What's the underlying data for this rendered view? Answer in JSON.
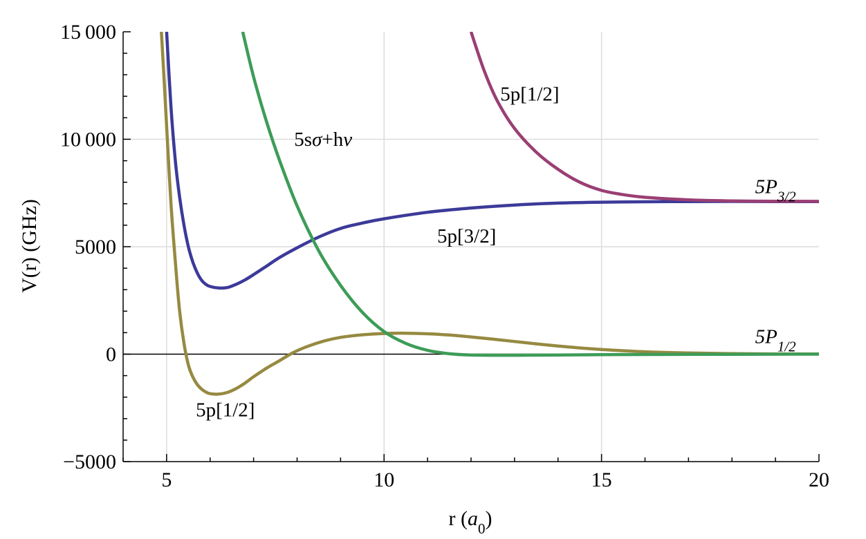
{
  "chart_data": {
    "type": "line",
    "title": "",
    "xlabel": "r (a",
    "xlabel_sub": "0",
    "xlabel_close": ")",
    "ylabel": "V(r) (GHz)",
    "xlim": [
      4,
      20
    ],
    "ylim": [
      -5000,
      15000
    ],
    "x_ticks": [
      {
        "value": 5,
        "label": "5"
      },
      {
        "value": 10,
        "label": "10"
      },
      {
        "value": 15,
        "label": "15"
      },
      {
        "value": 20,
        "label": "20"
      }
    ],
    "y_ticks": [
      {
        "value": -5000,
        "label": "−5000"
      },
      {
        "value": 0,
        "label": "0"
      },
      {
        "value": 5000,
        "label": "5000"
      },
      {
        "value": 10000,
        "label": "10 000"
      },
      {
        "value": 15000,
        "label": "15 000"
      }
    ],
    "grid": true,
    "zero_line": true,
    "series": [
      {
        "id": "yellow",
        "color": "#968a41",
        "points": [
          [
            4.88,
            15000
          ],
          [
            4.95,
            12500
          ],
          [
            5.0,
            10600
          ],
          [
            5.1,
            7000
          ],
          [
            5.2,
            4300
          ],
          [
            5.3,
            2000
          ],
          [
            5.4,
            500
          ],
          [
            5.5,
            -500
          ],
          [
            5.6,
            -1050
          ],
          [
            5.7,
            -1400
          ],
          [
            5.8,
            -1620
          ],
          [
            5.9,
            -1760
          ],
          [
            6.0,
            -1840
          ],
          [
            6.2,
            -1860
          ],
          [
            6.4,
            -1780
          ],
          [
            6.6,
            -1600
          ],
          [
            6.8,
            -1350
          ],
          [
            7.0,
            -1050
          ],
          [
            7.3,
            -650
          ],
          [
            7.6,
            -300
          ],
          [
            7.9,
            60
          ],
          [
            8.2,
            330
          ],
          [
            8.6,
            600
          ],
          [
            9.0,
            780
          ],
          [
            9.5,
            900
          ],
          [
            10.0,
            960
          ],
          [
            10.5,
            975
          ],
          [
            11.0,
            950
          ],
          [
            11.5,
            890
          ],
          [
            12.0,
            800
          ],
          [
            12.5,
            700
          ],
          [
            13.0,
            590
          ],
          [
            13.5,
            480
          ],
          [
            14.0,
            380
          ],
          [
            14.5,
            290
          ],
          [
            15.0,
            215
          ],
          [
            16.0,
            110
          ],
          [
            17.0,
            55
          ],
          [
            18.0,
            25
          ],
          [
            19.0,
            10
          ],
          [
            20.0,
            5
          ]
        ]
      },
      {
        "id": "blue",
        "color": "#3c3a99",
        "points": [
          [
            5.0,
            15000
          ],
          [
            5.1,
            11500
          ],
          [
            5.2,
            9000
          ],
          [
            5.3,
            7300
          ],
          [
            5.4,
            6000
          ],
          [
            5.5,
            5000
          ],
          [
            5.6,
            4300
          ],
          [
            5.7,
            3800
          ],
          [
            5.8,
            3450
          ],
          [
            5.9,
            3250
          ],
          [
            6.0,
            3150
          ],
          [
            6.2,
            3080
          ],
          [
            6.4,
            3100
          ],
          [
            6.6,
            3250
          ],
          [
            6.8,
            3450
          ],
          [
            7.0,
            3700
          ],
          [
            7.3,
            4100
          ],
          [
            7.6,
            4500
          ],
          [
            8.0,
            4950
          ],
          [
            8.5,
            5450
          ],
          [
            9.0,
            5850
          ],
          [
            9.5,
            6100
          ],
          [
            10.0,
            6300
          ],
          [
            11.0,
            6600
          ],
          [
            12.0,
            6800
          ],
          [
            13.0,
            6940
          ],
          [
            14.0,
            7030
          ],
          [
            15.0,
            7070
          ],
          [
            16.0,
            7090
          ],
          [
            17.0,
            7100
          ],
          [
            18.0,
            7105
          ],
          [
            19.0,
            7100
          ],
          [
            20.0,
            7100
          ]
        ]
      },
      {
        "id": "green",
        "color": "#3d9c57",
        "points": [
          [
            6.75,
            15000
          ],
          [
            7.0,
            12900
          ],
          [
            7.3,
            10800
          ],
          [
            7.6,
            9000
          ],
          [
            8.0,
            6900
          ],
          [
            8.5,
            4800
          ],
          [
            9.0,
            3200
          ],
          [
            9.5,
            1950
          ],
          [
            10.0,
            1050
          ],
          [
            10.5,
            500
          ],
          [
            11.0,
            180
          ],
          [
            11.5,
            20
          ],
          [
            12.0,
            -40
          ],
          [
            13.0,
            -50
          ],
          [
            14.0,
            -40
          ],
          [
            15.0,
            -25
          ],
          [
            16.0,
            -15
          ],
          [
            18.0,
            -5
          ],
          [
            20.0,
            0
          ]
        ]
      },
      {
        "id": "purple",
        "color": "#9a3f74",
        "points": [
          [
            12.0,
            15000
          ],
          [
            12.3,
            13200
          ],
          [
            12.6,
            11800
          ],
          [
            13.0,
            10500
          ],
          [
            13.5,
            9400
          ],
          [
            14.0,
            8600
          ],
          [
            14.5,
            8000
          ],
          [
            15.0,
            7620
          ],
          [
            15.5,
            7420
          ],
          [
            16.0,
            7300
          ],
          [
            17.0,
            7180
          ],
          [
            18.0,
            7130
          ],
          [
            19.0,
            7115
          ],
          [
            20.0,
            7110
          ]
        ]
      }
    ],
    "annotations": [
      {
        "id": "purple-label",
        "text": "5p[1/2]",
        "x": 13.35,
        "y": 11800
      },
      {
        "id": "green-label",
        "text": "5sσ+hν",
        "x": 8.6,
        "y": 9700
      },
      {
        "id": "blue-label",
        "text": "5p[3/2]",
        "x": 11.9,
        "y": 5200
      },
      {
        "id": "yellow-label",
        "text": "5p[1/2]",
        "x": 6.35,
        "y": -2900
      },
      {
        "id": "asym-upper-label",
        "text": "5P",
        "sub": "3/2",
        "x": 19.0,
        "y": 7500
      },
      {
        "id": "asym-lower-label",
        "text": "5P",
        "sub": "1/2",
        "x": 19.0,
        "y": 520
      }
    ]
  }
}
